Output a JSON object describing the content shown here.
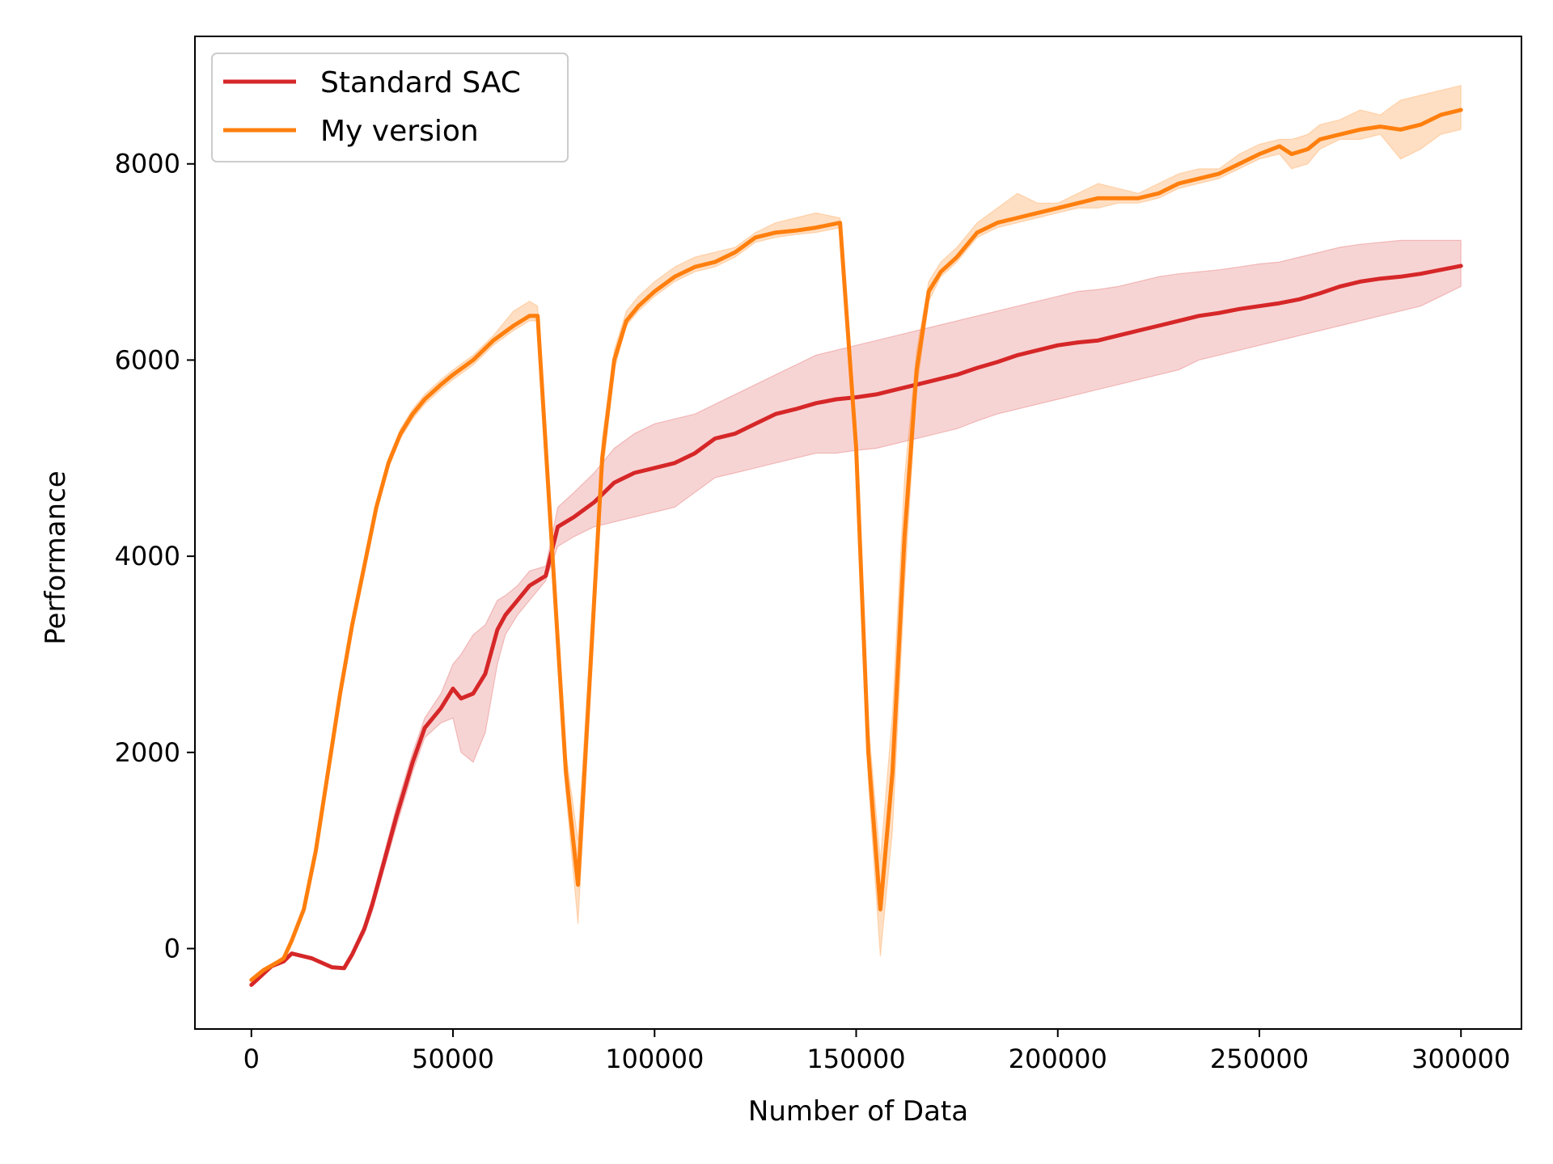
{
  "chart_data": {
    "type": "line",
    "title": "",
    "xlabel": "Number of Data",
    "ylabel": "Performance",
    "xlim": [
      -14000,
      315000
    ],
    "ylim": [
      -820,
      9300
    ],
    "xticks": [
      0,
      50000,
      100000,
      150000,
      200000,
      250000,
      300000
    ],
    "xtick_labels": [
      "0",
      "50000",
      "100000",
      "150000",
      "200000",
      "250000",
      "300000"
    ],
    "yticks": [
      0,
      2000,
      4000,
      6000,
      8000
    ],
    "ytick_labels": [
      "0",
      "2000",
      "4000",
      "6000",
      "8000"
    ],
    "grid": false,
    "legend_position": "top-left",
    "series": [
      {
        "name": "Standard SAC",
        "color": "#d62728",
        "x": [
          0,
          5000,
          8000,
          10000,
          15000,
          20000,
          23000,
          25000,
          28000,
          30000,
          33000,
          36000,
          40000,
          43000,
          47000,
          50000,
          52000,
          55000,
          58000,
          61000,
          63000,
          66000,
          69000,
          73000,
          76000,
          80000,
          85000,
          90000,
          95000,
          100000,
          105000,
          110000,
          115000,
          120000,
          125000,
          130000,
          135000,
          140000,
          145000,
          150000,
          155000,
          160000,
          165000,
          170000,
          175000,
          180000,
          185000,
          190000,
          195000,
          200000,
          205000,
          210000,
          215000,
          220000,
          225000,
          230000,
          235000,
          240000,
          245000,
          250000,
          255000,
          260000,
          265000,
          270000,
          275000,
          280000,
          285000,
          290000,
          295000,
          300000
        ],
        "values": [
          -370,
          -180,
          -130,
          -50,
          -100,
          -190,
          -200,
          -60,
          200,
          450,
          900,
          1350,
          1900,
          2250,
          2450,
          2650,
          2550,
          2600,
          2800,
          3250,
          3400,
          3550,
          3700,
          3800,
          4300,
          4400,
          4550,
          4750,
          4850,
          4900,
          4950,
          5050,
          5200,
          5250,
          5350,
          5450,
          5500,
          5560,
          5600,
          5620,
          5650,
          5700,
          5750,
          5800,
          5850,
          5920,
          5980,
          6050,
          6100,
          6150,
          6180,
          6200,
          6250,
          6300,
          6350,
          6400,
          6450,
          6480,
          6520,
          6550,
          6580,
          6620,
          6680,
          6750,
          6800,
          6830,
          6850,
          6880,
          6920,
          6960
        ],
        "band_lower": [
          -380,
          -190,
          -140,
          -60,
          -110,
          -200,
          -210,
          -80,
          150,
          380,
          820,
          1250,
          1800,
          2150,
          2300,
          2350,
          2000,
          1900,
          2200,
          2900,
          3200,
          3400,
          3550,
          3750,
          4100,
          4200,
          4300,
          4350,
          4400,
          4450,
          4500,
          4650,
          4800,
          4850,
          4900,
          4950,
          5000,
          5050,
          5050,
          5080,
          5100,
          5150,
          5200,
          5250,
          5300,
          5380,
          5450,
          5500,
          5550,
          5600,
          5650,
          5700,
          5750,
          5800,
          5850,
          5900,
          6000,
          6050,
          6100,
          6150,
          6200,
          6250,
          6300,
          6350,
          6400,
          6450,
          6500,
          6550,
          6650,
          6750
        ],
        "band_upper": [
          -360,
          -170,
          -120,
          -40,
          -90,
          -180,
          -190,
          -40,
          250,
          520,
          980,
          1450,
          2000,
          2350,
          2600,
          2900,
          3000,
          3200,
          3300,
          3550,
          3600,
          3700,
          3850,
          3900,
          4500,
          4650,
          4850,
          5100,
          5250,
          5350,
          5400,
          5450,
          5550,
          5650,
          5750,
          5850,
          5950,
          6050,
          6100,
          6150,
          6200,
          6250,
          6300,
          6350,
          6400,
          6450,
          6500,
          6550,
          6600,
          6650,
          6700,
          6720,
          6750,
          6800,
          6850,
          6880,
          6900,
          6920,
          6950,
          6980,
          7000,
          7050,
          7100,
          7150,
          7180,
          7200,
          7220,
          7220,
          7220,
          7220
        ]
      },
      {
        "name": "My version",
        "color": "#ff7f0e",
        "x": [
          0,
          3000,
          6000,
          8000,
          10000,
          13000,
          16000,
          19000,
          22000,
          25000,
          28000,
          31000,
          34000,
          37000,
          40000,
          43000,
          47000,
          50000,
          55000,
          60000,
          65000,
          69000,
          71000,
          75000,
          78000,
          81000,
          84000,
          87000,
          90000,
          93000,
          96000,
          100000,
          105000,
          110000,
          115000,
          120000,
          125000,
          130000,
          135000,
          140000,
          146000,
          150000,
          153000,
          156000,
          159000,
          162000,
          165000,
          168000,
          171000,
          175000,
          180000,
          185000,
          190000,
          195000,
          200000,
          205000,
          210000,
          215000,
          220000,
          225000,
          230000,
          235000,
          240000,
          245000,
          250000,
          255000,
          258000,
          262000,
          265000,
          270000,
          275000,
          280000,
          285000,
          290000,
          295000,
          300000
        ],
        "values": [
          -320,
          -220,
          -150,
          -100,
          80,
          400,
          1000,
          1800,
          2600,
          3300,
          3900,
          4500,
          4950,
          5250,
          5450,
          5600,
          5750,
          5850,
          6000,
          6200,
          6350,
          6450,
          6450,
          3800,
          1800,
          650,
          2800,
          5000,
          6000,
          6400,
          6550,
          6700,
          6850,
          6950,
          7000,
          7100,
          7250,
          7300,
          7320,
          7350,
          7400,
          5100,
          2000,
          400,
          1800,
          4200,
          5900,
          6700,
          6900,
          7050,
          7300,
          7400,
          7450,
          7500,
          7550,
          7600,
          7650,
          7650,
          7650,
          7700,
          7800,
          7850,
          7900,
          8000,
          8100,
          8180,
          8100,
          8150,
          8250,
          8300,
          8350,
          8380,
          8350,
          8400,
          8500,
          8550
        ],
        "band_lower": [
          -330,
          -230,
          -160,
          -110,
          60,
          370,
          960,
          1750,
          2550,
          3250,
          3850,
          4450,
          4900,
          5200,
          5400,
          5550,
          5700,
          5800,
          5950,
          6150,
          6300,
          6400,
          6400,
          3700,
          1600,
          250,
          2500,
          4800,
          5900,
          6350,
          6500,
          6650,
          6800,
          6900,
          6950,
          7050,
          7200,
          7250,
          7280,
          7300,
          7350,
          4900,
          1700,
          -80,
          1200,
          3700,
          5700,
          6600,
          6850,
          7000,
          7250,
          7350,
          7400,
          7450,
          7500,
          7550,
          7550,
          7600,
          7600,
          7650,
          7750,
          7800,
          7850,
          7950,
          8050,
          8100,
          7950,
          8000,
          8150,
          8250,
          8250,
          8300,
          8050,
          8150,
          8300,
          8350
        ],
        "band_upper": [
          -310,
          -210,
          -140,
          -90,
          100,
          430,
          1040,
          1850,
          2650,
          3350,
          3950,
          4550,
          5000,
          5300,
          5500,
          5650,
          5800,
          5900,
          6050,
          6250,
          6500,
          6600,
          6550,
          3900,
          2000,
          1100,
          3100,
          5200,
          6100,
          6500,
          6650,
          6800,
          6950,
          7050,
          7100,
          7150,
          7300,
          7400,
          7450,
          7500,
          7450,
          5300,
          2300,
          900,
          2400,
          4800,
          6100,
          6800,
          7000,
          7150,
          7400,
          7550,
          7700,
          7600,
          7600,
          7700,
          7800,
          7750,
          7700,
          7800,
          7900,
          7950,
          7950,
          8100,
          8200,
          8250,
          8250,
          8300,
          8400,
          8450,
          8550,
          8500,
          8650,
          8700,
          8750,
          8800
        ]
      }
    ]
  }
}
